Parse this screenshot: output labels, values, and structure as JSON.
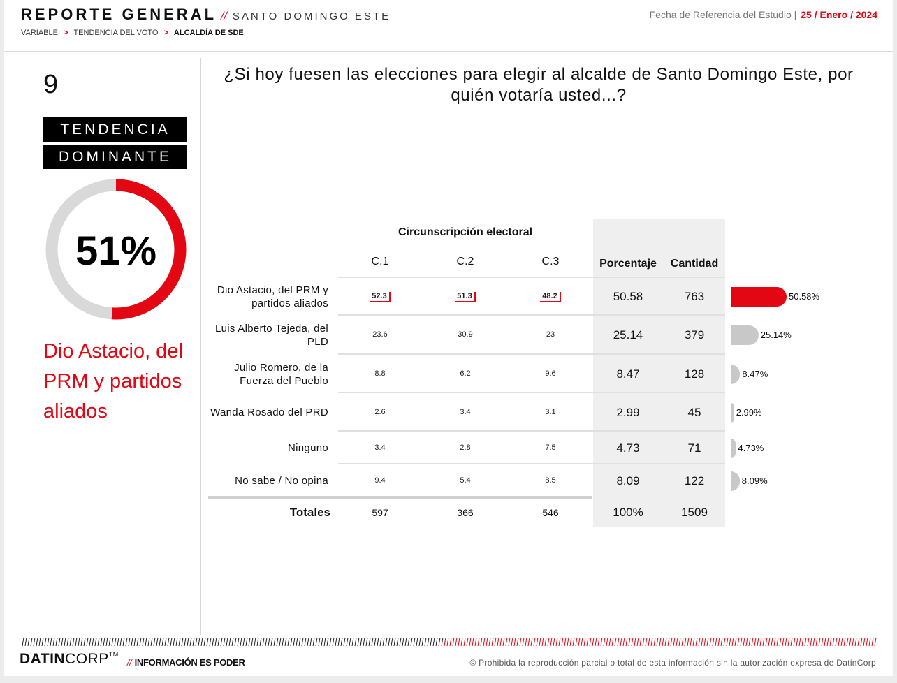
{
  "header": {
    "title": "REPORTE GENERAL",
    "title_sep": "//",
    "subtitle": "SANTO DOMINGO ESTE",
    "breadcrumb": [
      "VARIABLE",
      "TENDENCIA DEL VOTO",
      "ALCALDÍA DE SDE"
    ],
    "breadcrumb_sep": ">",
    "date_label": "Fecha de Referencia del Estudio |",
    "date_value": "25 / Enero / 2024"
  },
  "sidebar": {
    "slide_number": "9",
    "tag_line1": "TENDENCIA",
    "tag_line2": "DOMINANTE",
    "donut_value": "51%",
    "donut_fraction": 0.51,
    "winner_text": "Dio Astacio, del PRM y partidos aliados"
  },
  "question": "¿Si hoy fuesen las elecciones para elegir al alcalde de Santo Domingo Este, por quién votaría usted...?",
  "colors": {
    "accent": "#e30613",
    "neutral_bar": "#c8c8c8",
    "donut_track": "#d9d9d9",
    "band": "#efefef"
  },
  "chart_data": {
    "type": "table",
    "group_header": "Circunscripción electoral",
    "columns": [
      "C.1",
      "C.2",
      "C.3",
      "Porcentaje",
      "Cantidad"
    ],
    "rows": [
      {
        "label": "Dio Astacio, del PRM y partidos aliados",
        "c1": "52.3",
        "c2": "51.3",
        "c3": "48.2",
        "pct": "50.58",
        "qty": "763",
        "bar_value": 50.58,
        "bar_label": "50.58%",
        "highlight": true
      },
      {
        "label": "Luis Alberto Tejeda, del PLD",
        "c1": "23.6",
        "c2": "30.9",
        "c3": "23",
        "pct": "25.14",
        "qty": "379",
        "bar_value": 25.14,
        "bar_label": "25.14%",
        "highlight": false
      },
      {
        "label": "Julio Romero, de la Fuerza del Pueblo",
        "c1": "8.8",
        "c2": "6.2",
        "c3": "9.6",
        "pct": "8.47",
        "qty": "128",
        "bar_value": 8.47,
        "bar_label": "8.47%",
        "highlight": false
      },
      {
        "label": "Wanda Rosado del PRD",
        "c1": "2.6",
        "c2": "3.4",
        "c3": "3.1",
        "pct": "2.99",
        "qty": "45",
        "bar_value": 2.99,
        "bar_label": "2.99%",
        "highlight": false
      },
      {
        "label": "Ninguno",
        "c1": "3.4",
        "c2": "2.8",
        "c3": "7.5",
        "pct": "4.73",
        "qty": "71",
        "bar_value": 4.73,
        "bar_label": "4.73%",
        "highlight": false
      },
      {
        "label": "No sabe / No opina",
        "c1": "9.4",
        "c2": "5.4",
        "c3": "8.5",
        "pct": "8.09",
        "qty": "122",
        "bar_value": 8.09,
        "bar_label": "8.09%",
        "highlight": false
      }
    ],
    "totals": {
      "label": "Totales",
      "c1": "597",
      "c2": "366",
      "c3": "546",
      "pct": "100%",
      "qty": "1509"
    }
  },
  "footer": {
    "logo_bold": "DATIN",
    "logo_light": "CORP",
    "logo_tm": "TM",
    "tag_sep": "//",
    "tagline": "INFORMACIÓN ES PODER",
    "legal": "© Prohibida la reproducción parcial o total de esta información sin la autorización expresa de DatinCorp"
  }
}
